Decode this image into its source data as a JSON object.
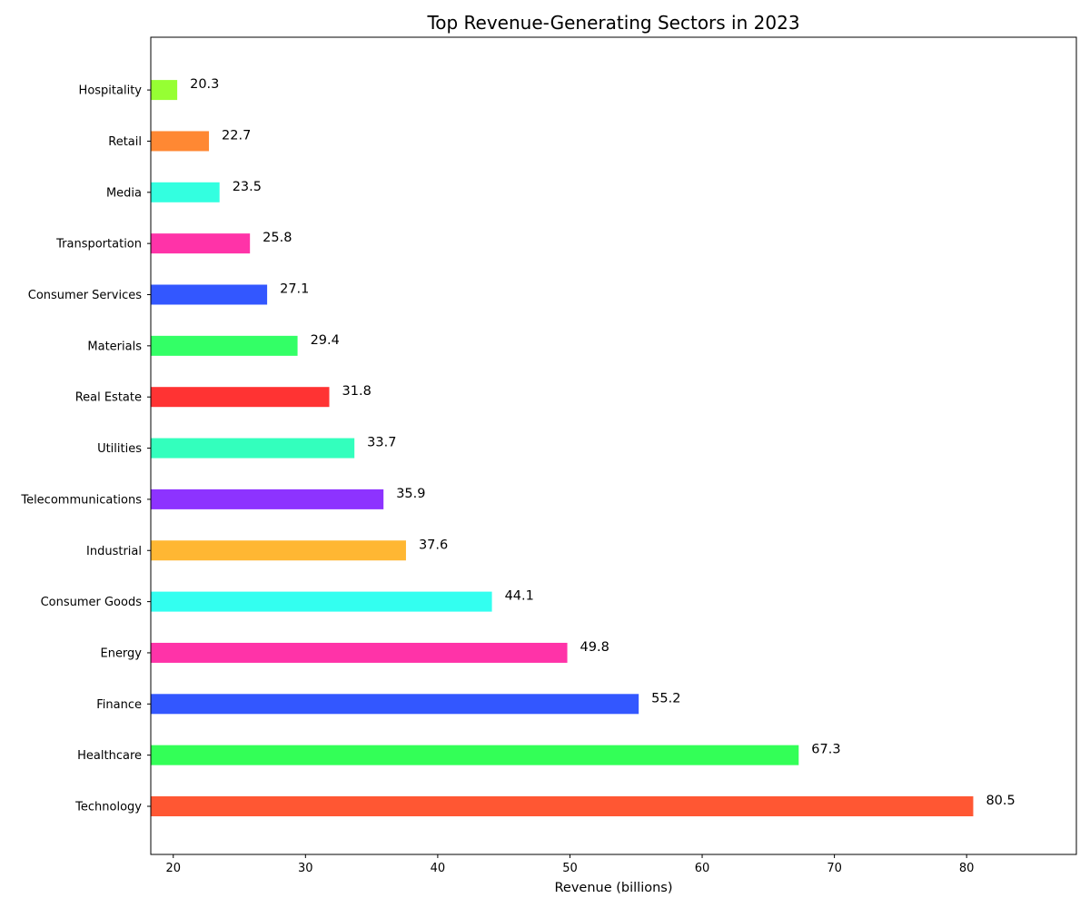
{
  "chart_data": {
    "type": "bar",
    "orientation": "horizontal",
    "title": "Top Revenue-Generating Sectors in 2023",
    "xlabel": "Revenue (billions)",
    "ylabel": "",
    "xlim": [
      18.3,
      88.3
    ],
    "xticks": [
      "20",
      "30",
      "40",
      "50",
      "60",
      "70",
      "80"
    ],
    "grid": false,
    "data_labels": true,
    "categories": [
      "Technology",
      "Healthcare",
      "Finance",
      "Energy",
      "Consumer Goods",
      "Industrial",
      "Telecommunications",
      "Utilities",
      "Real Estate",
      "Materials",
      "Consumer Services",
      "Transportation",
      "Media",
      "Retail",
      "Hospitality"
    ],
    "values": [
      80.5,
      67.3,
      55.2,
      49.8,
      44.1,
      37.6,
      35.9,
      33.7,
      31.8,
      29.4,
      27.1,
      25.8,
      23.5,
      22.7,
      20.3
    ],
    "value_labels": [
      "80.5",
      "67.3",
      "55.2",
      "49.8",
      "44.1",
      "37.6",
      "35.9",
      "33.7",
      "31.8",
      "29.4",
      "27.1",
      "25.8",
      "23.5",
      "22.7",
      "20.3"
    ],
    "colors": [
      "#FF5733",
      "#33FF57",
      "#3357FF",
      "#FF33A8",
      "#33FFF0",
      "#FFB733",
      "#8D33FF",
      "#33FFBD",
      "#FF3333",
      "#33FF66",
      "#3357FF",
      "#FF33A8",
      "#33FFE0",
      "#FF8833",
      "#96FF33"
    ]
  }
}
